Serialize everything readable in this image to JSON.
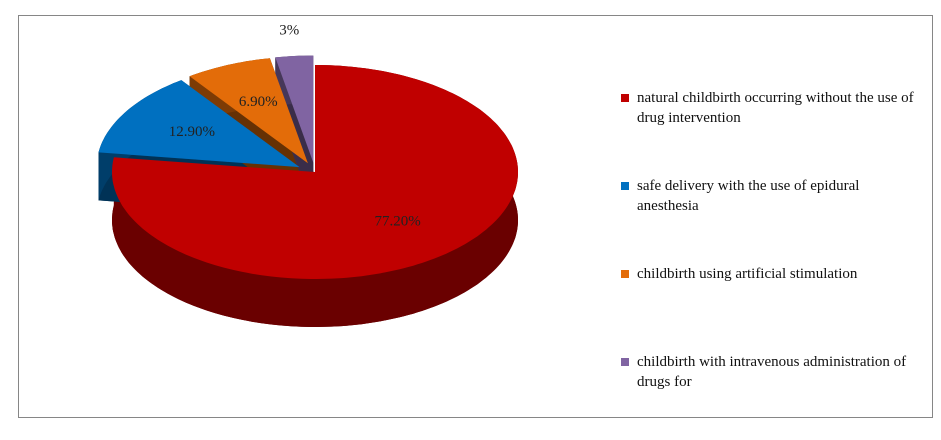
{
  "chart_data": {
    "type": "pie",
    "categories": [
      "natural childbirth occurring without the use of drug intervention",
      "safe delivery with the use of epidural anesthesia",
      "childbirth using artificial stimulation",
      "childbirth with intravenous administration of drugs for"
    ],
    "values": [
      77.2,
      12.9,
      6.9,
      3
    ],
    "value_labels": [
      "77.20%",
      "12.90%",
      "6.90%",
      "3%"
    ],
    "colors": [
      "#c00000",
      "#0070c0",
      "#e36c09",
      "#8064a2"
    ],
    "legend": "right"
  }
}
